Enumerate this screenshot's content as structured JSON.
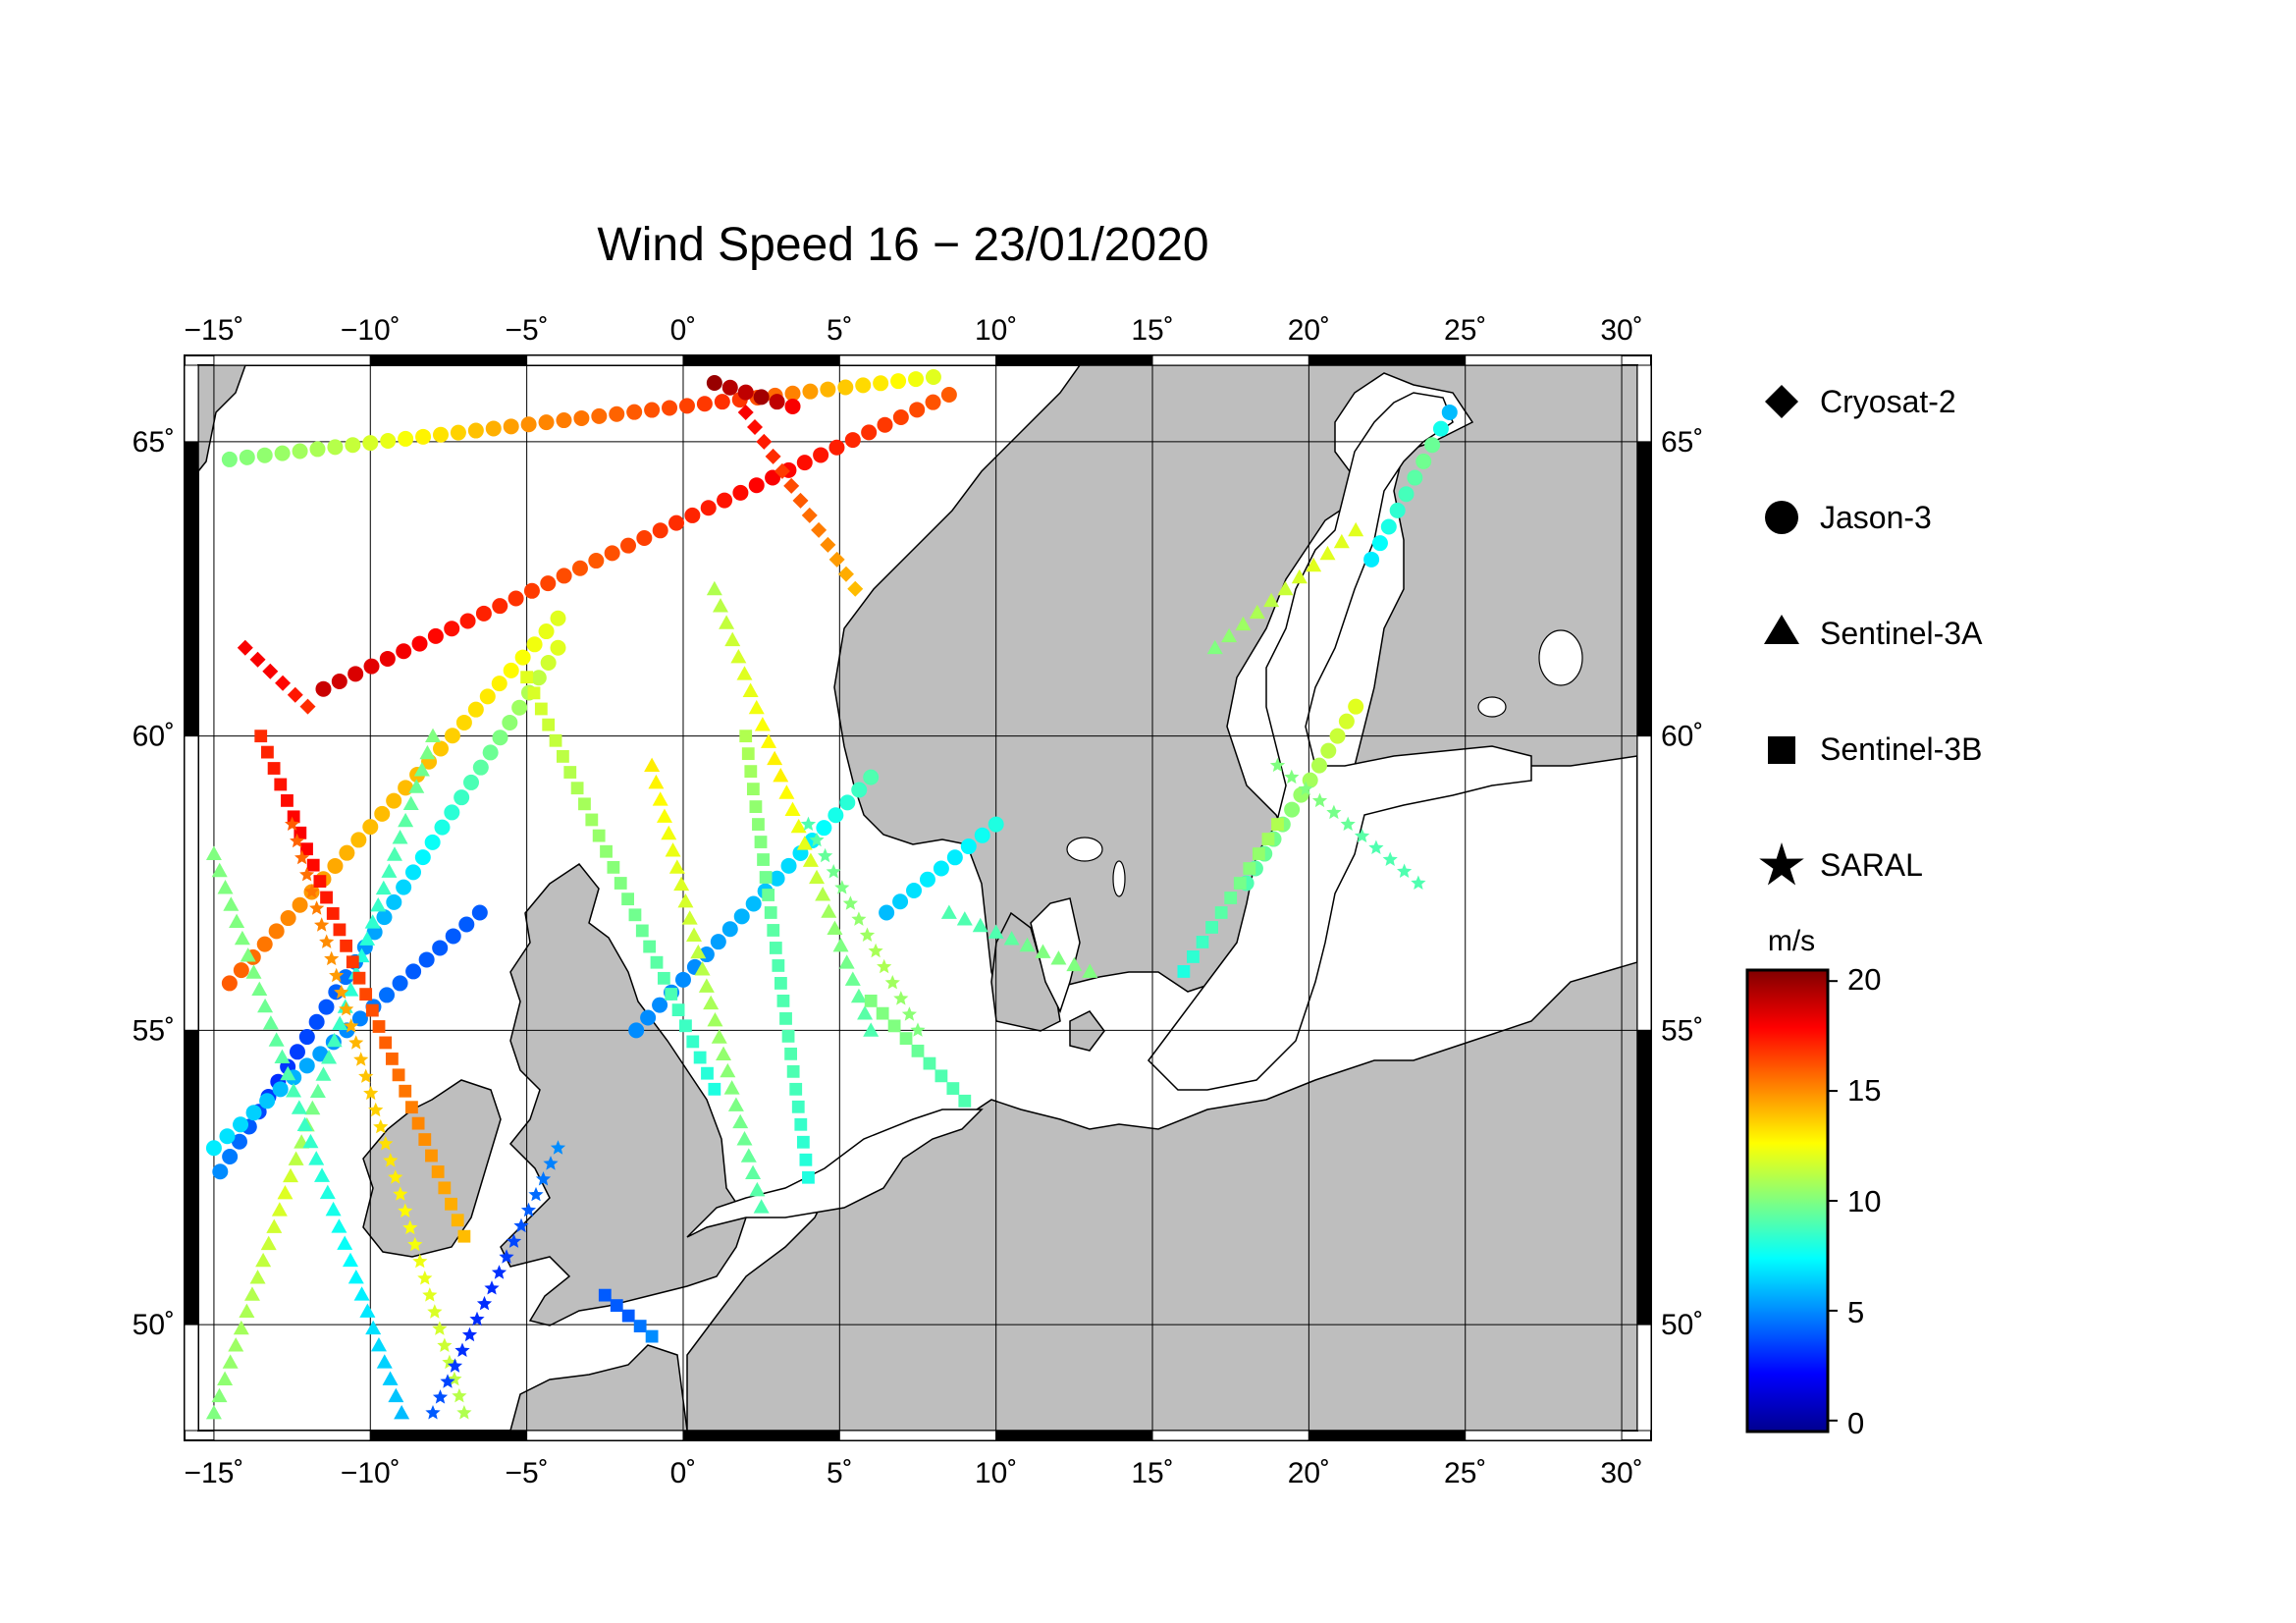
{
  "title": "Wind Speed 16 − 23/01/2020",
  "map": {
    "lon_range": [
      -15.5,
      30.5
    ],
    "lat_range": [
      48.2,
      66.3
    ],
    "lon_ticks": [
      "−15˚",
      "−10˚",
      "−5˚",
      "0˚",
      "5˚",
      "10˚",
      "15˚",
      "20˚",
      "25˚",
      "30˚"
    ],
    "lon_tick_values": [
      -15,
      -10,
      -5,
      0,
      5,
      10,
      15,
      20,
      25,
      30
    ],
    "lat_ticks": [
      "65˚",
      "60˚",
      "55˚",
      "50˚"
    ],
    "lat_tick_values": [
      65,
      60,
      55,
      50
    ],
    "land_color": "#bebebe",
    "sea_color": "#ffffff",
    "grid": true
  },
  "legend": {
    "items": [
      {
        "label": "Cryosat-2",
        "symbol": "diamond"
      },
      {
        "label": "Jason-3",
        "symbol": "circle"
      },
      {
        "label": "Sentinel-3A",
        "symbol": "triangle"
      },
      {
        "label": "Sentinel-3B",
        "symbol": "square"
      },
      {
        "label": "SARAL",
        "symbol": "star"
      }
    ]
  },
  "colorbar": {
    "unit": "m/s",
    "range": [
      -0.5,
      20.5
    ],
    "ticks": [
      "20",
      "15",
      "10",
      "5",
      "0"
    ],
    "tick_values": [
      20,
      15,
      10,
      5,
      0
    ],
    "colormap": [
      "#00008f",
      "#0000ff",
      "#0080ff",
      "#00ffff",
      "#80ff80",
      "#ffff00",
      "#ff8000",
      "#ff0000",
      "#800000"
    ]
  },
  "chart_data": {
    "type": "scatter",
    "title": "Wind Speed 16 − 23/01/2020",
    "value_unit": "m/s",
    "tracks": [
      {
        "satellite": "Jason-3",
        "from": [
          -14.8,
          52.6
        ],
        "to": [
          -4.0,
          61.5
        ],
        "values": [
          5,
          3,
          4,
          6,
          8,
          10,
          12
        ]
      },
      {
        "satellite": "Jason-3",
        "from": [
          -11.5,
          60.8
        ],
        "to": [
          8.5,
          65.8
        ],
        "values": [
          19,
          18,
          17,
          16,
          17,
          18,
          17,
          16
        ]
      },
      {
        "satellite": "Jason-3",
        "from": [
          -14.5,
          64.7
        ],
        "to": [
          8.0,
          66.1
        ],
        "values": [
          10,
          11,
          13,
          15,
          16,
          17,
          14,
          12
        ]
      },
      {
        "satellite": "Jason-3",
        "from": [
          -1.5,
          55.0
        ],
        "to": [
          6.0,
          59.3
        ],
        "values": [
          5,
          5,
          6,
          7,
          9
        ]
      },
      {
        "satellite": "Jason-3",
        "from": [
          -14.5,
          55.8
        ],
        "to": [
          -4.0,
          62.0
        ],
        "values": [
          16,
          15,
          14,
          14,
          13,
          12
        ]
      },
      {
        "satellite": "Jason-3",
        "from": [
          -6.5,
          57.0
        ],
        "to": [
          -15.0,
          53.0
        ],
        "values": [
          4,
          4,
          5,
          6,
          7
        ]
      },
      {
        "satellite": "Jason-3",
        "from": [
          6.5,
          57.0
        ],
        "to": [
          10.0,
          58.5
        ],
        "values": [
          6,
          7,
          7,
          8
        ]
      },
      {
        "satellite": "Jason-3",
        "from": [
          18.0,
          57.5
        ],
        "to": [
          21.5,
          60.5
        ],
        "values": [
          9,
          10,
          11,
          12
        ]
      },
      {
        "satellite": "Jason-3",
        "from": [
          22.0,
          63.0
        ],
        "to": [
          24.5,
          65.5
        ],
        "values": [
          7,
          8,
          9,
          10,
          6
        ]
      },
      {
        "satellite": "Jason-3",
        "from": [
          1.0,
          66.0
        ],
        "to": [
          3.5,
          65.6
        ],
        "values": [
          20,
          19,
          20,
          18
        ]
      },
      {
        "satellite": "Sentinel-3A",
        "from": [
          -15.0,
          48.5
        ],
        "to": [
          -8.0,
          60.0
        ],
        "values": [
          10,
          11,
          12,
          9,
          8,
          9,
          10
        ]
      },
      {
        "satellite": "Sentinel-3A",
        "from": [
          -9.0,
          48.5
        ],
        "to": [
          -15.0,
          58.0
        ],
        "values": [
          6,
          7,
          8,
          9,
          10,
          10
        ]
      },
      {
        "satellite": "Sentinel-3A",
        "from": [
          1.0,
          62.5
        ],
        "to": [
          6.0,
          55.0
        ],
        "values": [
          11,
          12,
          13,
          12,
          10,
          9
        ]
      },
      {
        "satellite": "Sentinel-3A",
        "from": [
          -1.0,
          59.5
        ],
        "to": [
          2.5,
          52.0
        ],
        "values": [
          13,
          12,
          11,
          10,
          9
        ]
      },
      {
        "satellite": "Sentinel-3A",
        "from": [
          8.5,
          57.0
        ],
        "to": [
          13.0,
          56.0
        ],
        "values": [
          9,
          9,
          10,
          10
        ]
      },
      {
        "satellite": "Sentinel-3A",
        "from": [
          17.0,
          61.5
        ],
        "to": [
          21.5,
          63.5
        ],
        "values": [
          10,
          11,
          12,
          12
        ]
      },
      {
        "satellite": "Sentinel-3B",
        "from": [
          -13.5,
          60.0
        ],
        "to": [
          -7.0,
          51.5
        ],
        "values": [
          17,
          18,
          17,
          16,
          15,
          14
        ]
      },
      {
        "satellite": "Sentinel-3B",
        "from": [
          -5.0,
          61.0
        ],
        "to": [
          1.0,
          54.0
        ],
        "values": [
          12,
          11,
          10,
          9,
          8
        ]
      },
      {
        "satellite": "Sentinel-3B",
        "from": [
          2.0,
          60.0
        ],
        "to": [
          4.0,
          52.5
        ],
        "values": [
          11,
          10,
          9,
          9,
          8
        ]
      },
      {
        "satellite": "Sentinel-3B",
        "from": [
          6.0,
          55.5
        ],
        "to": [
          9.0,
          53.8
        ],
        "values": [
          10,
          10,
          9,
          9
        ]
      },
      {
        "satellite": "Sentinel-3B",
        "from": [
          16.0,
          56.0
        ],
        "to": [
          19.0,
          58.5
        ],
        "values": [
          8,
          9,
          10,
          11
        ]
      },
      {
        "satellite": "Sentinel-3B",
        "from": [
          -2.5,
          50.5
        ],
        "to": [
          -1.0,
          49.8
        ],
        "values": [
          4,
          4,
          5
        ]
      },
      {
        "satellite": "SARAL",
        "from": [
          -12.5,
          58.5
        ],
        "to": [
          -7.0,
          48.5
        ],
        "values": [
          16,
          15,
          14,
          13,
          12,
          11
        ]
      },
      {
        "satellite": "SARAL",
        "from": [
          -8.0,
          48.5
        ],
        "to": [
          -4.0,
          53.0
        ],
        "values": [
          4,
          3,
          3,
          4,
          5
        ]
      },
      {
        "satellite": "SARAL",
        "from": [
          4.0,
          58.5
        ],
        "to": [
          7.5,
          55.0
        ],
        "values": [
          9,
          10,
          11,
          10
        ]
      },
      {
        "satellite": "SARAL",
        "from": [
          19.0,
          59.5
        ],
        "to": [
          23.5,
          57.5
        ],
        "values": [
          10,
          10,
          9,
          9
        ]
      },
      {
        "satellite": "Cryosat-2",
        "from": [
          2.0,
          65.5
        ],
        "to": [
          5.5,
          62.5
        ],
        "values": [
          18,
          17,
          16,
          15,
          14
        ]
      },
      {
        "satellite": "Cryosat-2",
        "from": [
          -12.0,
          60.5
        ],
        "to": [
          -14.0,
          61.5
        ],
        "values": [
          17,
          18,
          18
        ]
      }
    ]
  }
}
